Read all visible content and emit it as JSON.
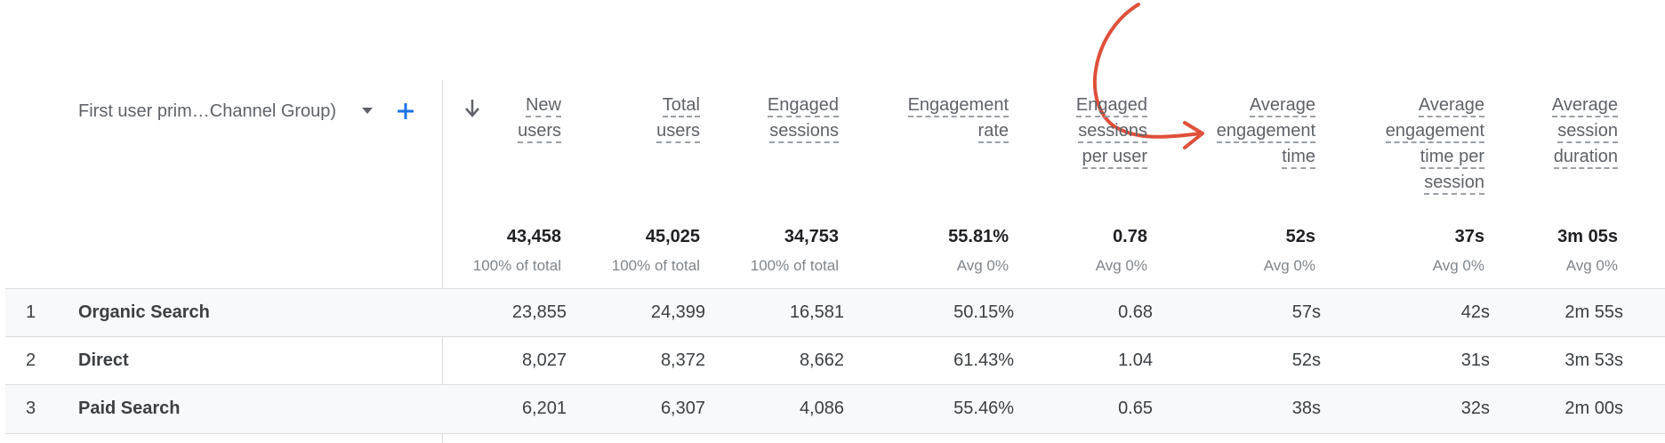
{
  "dimension": {
    "label": "First user prim…Channel Group)",
    "dropdown_icon": "caret-down-icon",
    "add_icon": "plus-icon",
    "accent_color": "#1a73e8"
  },
  "sort_icon": "arrow-down-icon",
  "columns": [
    {
      "id": "new-users",
      "header": [
        "New",
        "users"
      ],
      "total": "43,458",
      "total_sub": "100% of total"
    },
    {
      "id": "total-users",
      "header": [
        "Total",
        "users"
      ],
      "total": "45,025",
      "total_sub": "100% of total"
    },
    {
      "id": "engaged-sessions",
      "header": [
        "Engaged",
        "sessions"
      ],
      "total": "34,753",
      "total_sub": "100% of total"
    },
    {
      "id": "engagement-rate",
      "header": [
        "Engagement",
        "rate"
      ],
      "total": "55.81%",
      "total_sub": "Avg 0%"
    },
    {
      "id": "engaged-sessions-per-user",
      "header": [
        "Engaged",
        "sessions",
        "per user"
      ],
      "total": "0.78",
      "total_sub": "Avg 0%"
    },
    {
      "id": "average-engagement-time",
      "header": [
        "Average",
        "engagement",
        "time"
      ],
      "total": "52s",
      "total_sub": "Avg 0%"
    },
    {
      "id": "average-engagement-time-per-session",
      "header": [
        "Average",
        "engagement",
        "time per",
        "session"
      ],
      "total": "37s",
      "total_sub": "Avg 0%"
    },
    {
      "id": "average-session-duration",
      "header": [
        "Average",
        "session",
        "duration"
      ],
      "total": "3m 05s",
      "total_sub": "Avg 0%"
    }
  ],
  "rows": [
    {
      "index": "1",
      "name": "Organic Search",
      "values": [
        "23,855",
        "24,399",
        "16,581",
        "50.15%",
        "0.68",
        "57s",
        "42s",
        "2m 55s"
      ]
    },
    {
      "index": "2",
      "name": "Direct",
      "values": [
        "8,027",
        "8,372",
        "8,662",
        "61.43%",
        "1.04",
        "52s",
        "31s",
        "3m 53s"
      ]
    },
    {
      "index": "3",
      "name": "Paid Search",
      "values": [
        "6,201",
        "6,307",
        "4,086",
        "55.46%",
        "0.65",
        "38s",
        "32s",
        "2m 00s"
      ]
    }
  ],
  "annotation": {
    "icon": "curved-arrow-annotation",
    "color": "#e04f3a"
  }
}
